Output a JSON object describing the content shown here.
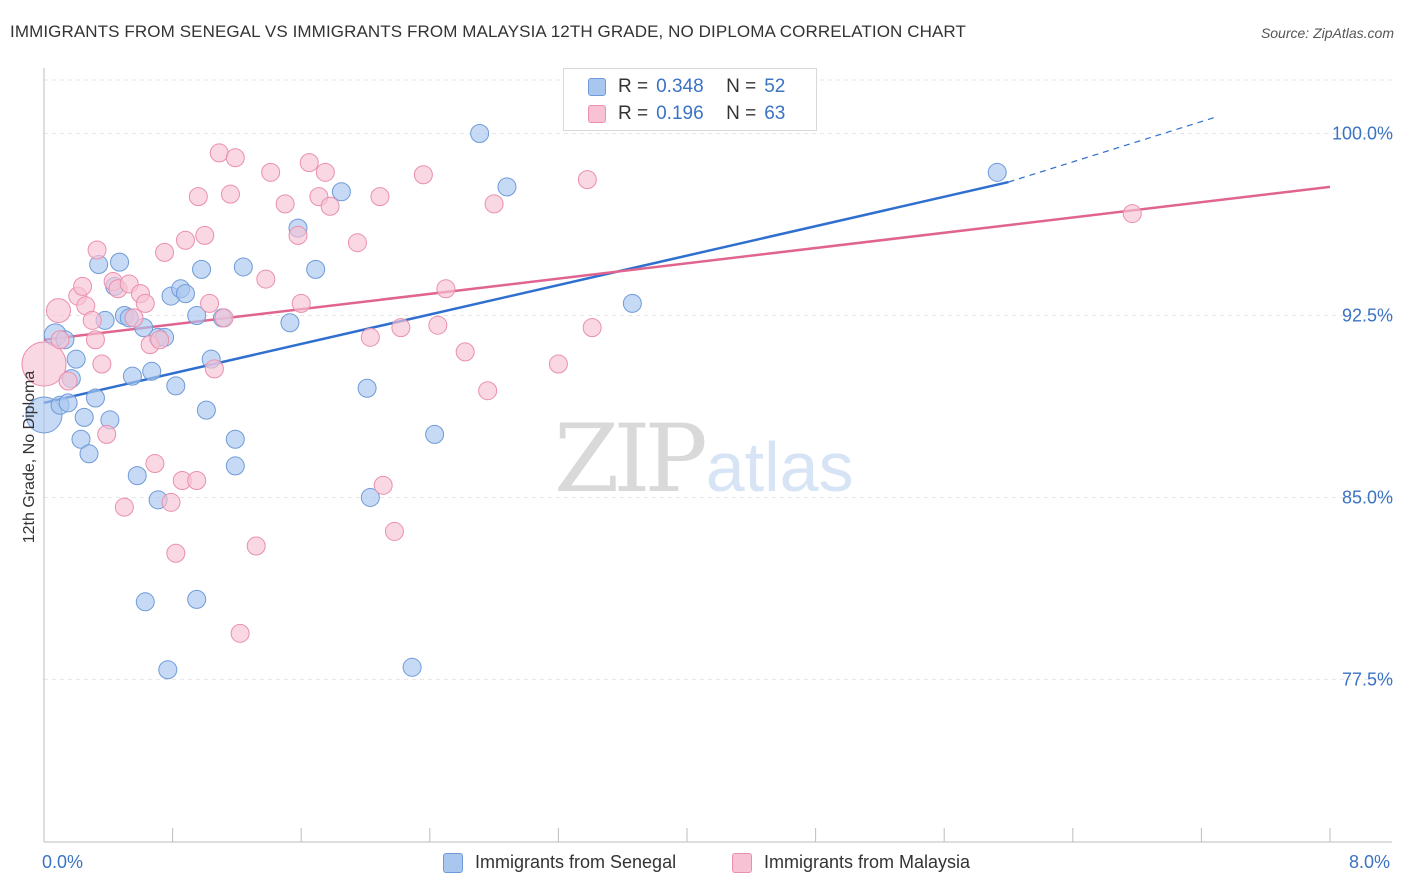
{
  "header": {
    "title": "IMMIGRANTS FROM SENEGAL VS IMMIGRANTS FROM MALAYSIA 12TH GRADE, NO DIPLOMA CORRELATION CHART",
    "source": "Source: ZipAtlas.com"
  },
  "watermark": {
    "zip": "ZIP",
    "atlas": "atlas"
  },
  "legend": {
    "rows": [
      {
        "r_label": "R =",
        "r_value": "0.348",
        "n_label": "N =",
        "n_value": "52"
      },
      {
        "r_label": "R =",
        "r_value": "0.196",
        "n_label": "N =",
        "n_value": "63"
      }
    ]
  },
  "bottom_legend": {
    "senegal": "Immigrants from Senegal",
    "malaysia": "Immigrants from Malaysia"
  },
  "axes": {
    "ylabel": "12th Grade, No Diploma",
    "x_min_label": "0.0%",
    "x_max_label": "8.0%",
    "y_tick_labels": [
      "100.0%",
      "92.5%",
      "85.0%",
      "77.5%"
    ]
  },
  "colors": {
    "senegal_fill": "#a9c6ef",
    "senegal_stroke": "#6f9bd8",
    "senegal_line": "#2f6fcf",
    "malaysia_fill": "#f7c3d4",
    "malaysia_stroke": "#ea8fae",
    "malaysia_line": "#e0648f",
    "tick_label": "#3b73c4",
    "grid": "#e6e6e6"
  },
  "chart_data": {
    "type": "scatter",
    "title": "IMMIGRANTS FROM SENEGAL VS IMMIGRANTS FROM MALAYSIA 12TH GRADE, NO DIPLOMA CORRELATION CHART",
    "xlabel": "",
    "ylabel": "12th Grade, No Diploma",
    "xlim": [
      0,
      8
    ],
    "ylim": [
      70.8,
      102.7
    ],
    "y_ticks": [
      77.5,
      85.0,
      92.5,
      100.0
    ],
    "x_tick_positions": [
      0,
      0.8,
      1.6,
      2.4,
      3.2,
      4.0,
      4.8,
      5.6,
      6.4,
      7.2,
      8.0
    ],
    "grid": true,
    "legend_placement": "top-center",
    "series": [
      {
        "name": "Immigrants from Senegal",
        "r": 0.348,
        "n": 52,
        "trend": {
          "x": [
            0,
            6.0
          ],
          "y": [
            88.9,
            98.0
          ],
          "dashed_extension": {
            "x": [
              6.0,
              7.3
            ],
            "y": [
              98.0,
              100.7
            ]
          }
        },
        "points": [
          [
            0.0,
            88.4,
            18
          ],
          [
            0.07,
            91.7,
            11
          ],
          [
            0.1,
            88.8,
            9
          ],
          [
            0.13,
            91.5,
            9
          ],
          [
            0.15,
            88.9,
            9
          ],
          [
            0.17,
            89.9,
            9
          ],
          [
            0.2,
            90.7,
            9
          ],
          [
            0.23,
            87.4,
            9
          ],
          [
            0.25,
            88.3,
            9
          ],
          [
            0.28,
            86.8,
            9
          ],
          [
            0.32,
            89.1,
            9
          ],
          [
            0.34,
            94.6,
            9
          ],
          [
            0.38,
            92.3,
            9
          ],
          [
            0.41,
            88.2,
            9
          ],
          [
            0.44,
            93.7,
            9
          ],
          [
            0.47,
            94.7,
            9
          ],
          [
            0.5,
            92.5,
            9
          ],
          [
            0.53,
            92.4,
            9
          ],
          [
            0.55,
            90.0,
            9
          ],
          [
            0.58,
            85.9,
            9
          ],
          [
            0.62,
            92.0,
            9
          ],
          [
            0.67,
            90.2,
            9
          ],
          [
            0.71,
            84.9,
            9
          ],
          [
            0.71,
            91.6,
            9
          ],
          [
            0.75,
            91.6,
            9
          ],
          [
            0.77,
            77.9,
            9
          ],
          [
            0.79,
            93.3,
            9
          ],
          [
            0.82,
            89.6,
            9
          ],
          [
            0.85,
            93.6,
            9
          ],
          [
            0.88,
            93.4,
            9
          ],
          [
            0.95,
            92.5,
            9
          ],
          [
            0.98,
            94.4,
            9
          ],
          [
            1.01,
            88.6,
            9
          ],
          [
            1.04,
            90.7,
            9
          ],
          [
            1.11,
            92.4,
            9
          ],
          [
            1.19,
            87.4,
            9
          ],
          [
            1.19,
            86.3,
            9
          ],
          [
            1.24,
            94.5,
            9
          ],
          [
            1.53,
            92.2,
            9
          ],
          [
            1.58,
            96.1,
            9
          ],
          [
            1.69,
            94.4,
            9
          ],
          [
            1.85,
            97.6,
            9
          ],
          [
            2.01,
            89.5,
            9
          ],
          [
            2.03,
            85.0,
            9
          ],
          [
            2.29,
            78.0,
            9
          ],
          [
            2.43,
            87.6,
            9
          ],
          [
            2.71,
            100.0,
            9
          ],
          [
            2.88,
            97.8,
            9
          ],
          [
            3.66,
            93.0,
            9
          ],
          [
            5.93,
            98.4,
            9
          ],
          [
            0.63,
            80.7,
            9
          ],
          [
            0.95,
            80.8,
            9
          ]
        ]
      },
      {
        "name": "Immigrants from Malaysia",
        "r": 0.196,
        "n": 63,
        "trend": {
          "x": [
            0,
            8.0
          ],
          "y": [
            91.5,
            97.8
          ]
        },
        "points": [
          [
            0.0,
            90.5,
            22
          ],
          [
            0.09,
            92.7,
            12
          ],
          [
            0.1,
            91.5,
            9
          ],
          [
            0.15,
            89.8,
            9
          ],
          [
            0.21,
            93.3,
            9
          ],
          [
            0.24,
            93.7,
            9
          ],
          [
            0.26,
            92.9,
            9
          ],
          [
            0.3,
            92.3,
            9
          ],
          [
            0.32,
            91.5,
            9
          ],
          [
            0.33,
            95.2,
            9
          ],
          [
            0.36,
            90.5,
            9
          ],
          [
            0.39,
            87.6,
            9
          ],
          [
            0.43,
            93.9,
            9
          ],
          [
            0.46,
            93.6,
            9
          ],
          [
            0.5,
            84.6,
            9
          ],
          [
            0.53,
            93.8,
            9
          ],
          [
            0.56,
            92.4,
            9
          ],
          [
            0.6,
            93.4,
            9
          ],
          [
            0.63,
            93.0,
            9
          ],
          [
            0.66,
            91.3,
            9
          ],
          [
            0.69,
            86.4,
            9
          ],
          [
            0.72,
            91.5,
            9
          ],
          [
            0.75,
            95.1,
            9
          ],
          [
            0.79,
            84.8,
            9
          ],
          [
            0.82,
            82.7,
            9
          ],
          [
            0.86,
            85.7,
            9
          ],
          [
            0.88,
            95.6,
            9
          ],
          [
            0.95,
            85.7,
            9
          ],
          [
            0.96,
            97.4,
            9
          ],
          [
            1.0,
            95.8,
            9
          ],
          [
            1.03,
            93.0,
            9
          ],
          [
            1.06,
            90.3,
            9
          ],
          [
            1.09,
            99.2,
            9
          ],
          [
            1.12,
            92.4,
            9
          ],
          [
            1.16,
            97.5,
            9
          ],
          [
            1.19,
            99.0,
            9
          ],
          [
            1.22,
            79.4,
            9
          ],
          [
            1.32,
            83.0,
            9
          ],
          [
            1.38,
            94.0,
            9
          ],
          [
            1.41,
            98.4,
            9
          ],
          [
            1.5,
            97.1,
            9
          ],
          [
            1.58,
            95.8,
            9
          ],
          [
            1.6,
            93.0,
            9
          ],
          [
            1.65,
            98.8,
            9
          ],
          [
            1.71,
            97.4,
            9
          ],
          [
            1.75,
            98.4,
            9
          ],
          [
            1.78,
            97.0,
            9
          ],
          [
            1.95,
            95.5,
            9
          ],
          [
            2.03,
            91.6,
            9
          ],
          [
            2.09,
            97.4,
            9
          ],
          [
            2.11,
            85.5,
            9
          ],
          [
            2.18,
            83.6,
            9
          ],
          [
            2.22,
            92.0,
            9
          ],
          [
            2.36,
            98.3,
            9
          ],
          [
            2.45,
            92.1,
            9
          ],
          [
            2.5,
            93.6,
            9
          ],
          [
            2.62,
            91.0,
            9
          ],
          [
            2.76,
            89.4,
            9
          ],
          [
            2.8,
            97.1,
            9
          ],
          [
            3.2,
            90.5,
            9
          ],
          [
            3.38,
            98.1,
            9
          ],
          [
            3.41,
            92.0,
            9
          ],
          [
            6.77,
            96.7,
            9
          ]
        ]
      }
    ]
  }
}
